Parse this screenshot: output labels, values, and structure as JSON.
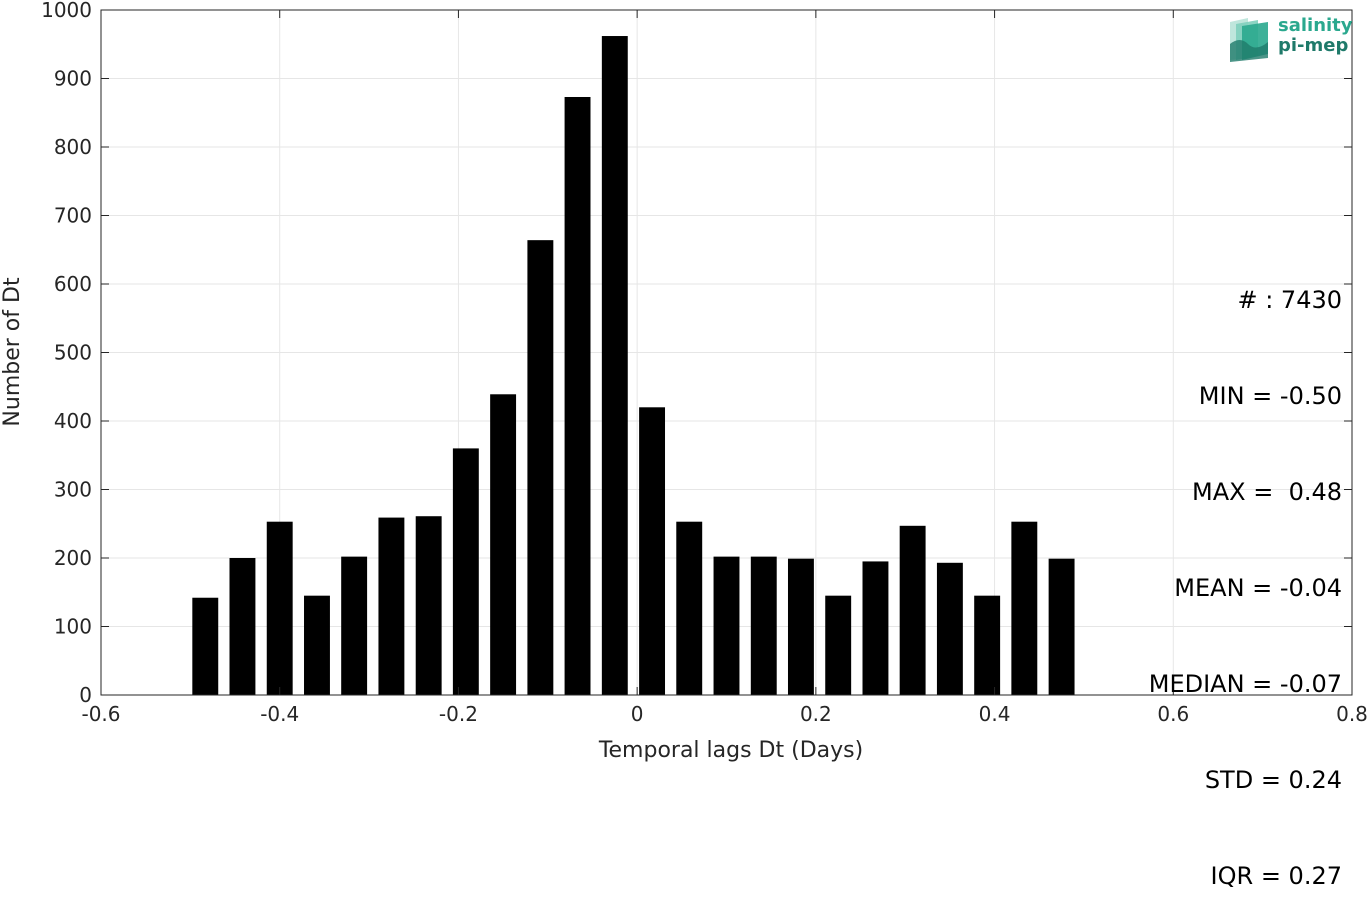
{
  "chart_data": {
    "type": "bar",
    "title": "",
    "xlabel": "Temporal lags Dt (Days)",
    "ylabel": "Number of Dt",
    "xlim": [
      -0.6,
      0.8
    ],
    "ylim": [
      0,
      1000
    ],
    "xticks": [
      "-0.6",
      "-0.4",
      "-0.2",
      "0",
      "0.2",
      "0.4",
      "0.6",
      "0.8"
    ],
    "xtick_values": [
      -0.6,
      -0.4,
      -0.2,
      0,
      0.2,
      0.4,
      0.6,
      0.8
    ],
    "yticks": [
      "0",
      "100",
      "200",
      "300",
      "400",
      "500",
      "600",
      "700",
      "800",
      "900",
      "1000"
    ],
    "ytick_values": [
      0,
      100,
      200,
      300,
      400,
      500,
      600,
      700,
      800,
      900,
      1000
    ],
    "grid": true,
    "bar_color": "#000000",
    "bar_width": 0.029,
    "x": [
      -0.4833,
      -0.4417,
      -0.4,
      -0.3583,
      -0.3167,
      -0.275,
      -0.2333,
      -0.1917,
      -0.15,
      -0.1083,
      -0.0667,
      -0.025,
      0.0167,
      0.0583,
      0.1,
      0.1417,
      0.1833,
      0.225,
      0.2667,
      0.3083,
      0.35,
      0.3917,
      0.4333,
      0.475
    ],
    "values": [
      142,
      200,
      253,
      145,
      202,
      259,
      261,
      360,
      439,
      664,
      873,
      962,
      420,
      253,
      202,
      202,
      199,
      145,
      195,
      247,
      193,
      145,
      253,
      199
    ]
  },
  "stats": {
    "lines": [
      "# : 7430",
      "MIN = -0.50",
      "MAX =  0.48",
      "MEAN = -0.04",
      "MEDIAN = -0.07",
      "STD = 0.24",
      "IQR = 0.27"
    ]
  },
  "logo": {
    "line1": "salinity",
    "line2": "pi-mep",
    "color1": "#2aa88e",
    "color2": "#1f7a6a"
  }
}
